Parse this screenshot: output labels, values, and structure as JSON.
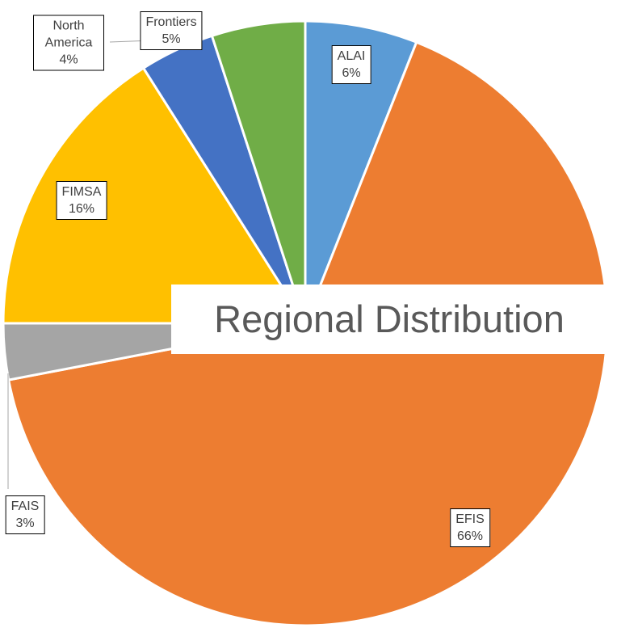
{
  "chart_data": {
    "type": "pie",
    "title": "Regional Distribution",
    "categories": [
      "ALAI",
      "EFIS",
      "FAIS",
      "FIMSA",
      "North America",
      "Frontiers"
    ],
    "values": [
      6,
      66,
      3,
      16,
      4,
      5
    ],
    "value_labels": [
      "6%",
      "66%",
      "3%",
      "16%",
      "4%",
      "5%"
    ],
    "colors": [
      "#5b9bd5",
      "#ed7d31",
      "#a5a5a5",
      "#ffc000",
      "#4472c4",
      "#70ad47"
    ]
  }
}
